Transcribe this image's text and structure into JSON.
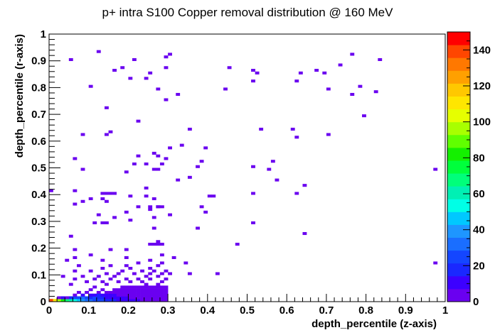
{
  "chart_data": {
    "type": "heatmap",
    "title": "p+ intra S100 Copper removal distribution @ 160 MeV",
    "xlabel": "depth_percentile (z-axis)",
    "ylabel": "depth_percentile (r-axis)",
    "xlim": [
      0,
      1
    ],
    "ylim": [
      0,
      1
    ],
    "zlim": [
      0,
      150
    ],
    "x_ticks": [
      "0",
      "0.1",
      "0.2",
      "0.3",
      "0.4",
      "0.5",
      "0.6",
      "0.7",
      "0.8",
      "0.9",
      "1"
    ],
    "y_ticks": [
      "0",
      "0.1",
      "0.2",
      "0.3",
      "0.4",
      "0.5",
      "0.6",
      "0.7",
      "0.8",
      "0.9",
      "1"
    ],
    "z_ticks": [
      "0",
      "20",
      "40",
      "60",
      "80",
      "100",
      "120",
      "140"
    ],
    "bin_width": 0.01,
    "bins": [
      [
        0.0,
        0.0,
        140
      ],
      [
        0.01,
        0.0,
        110
      ],
      [
        0.02,
        0.0,
        95
      ],
      [
        0.03,
        0.0,
        80
      ],
      [
        0.04,
        0.0,
        70
      ],
      [
        0.05,
        0.0,
        60
      ],
      [
        0.06,
        0.0,
        50
      ],
      [
        0.07,
        0.0,
        45
      ],
      [
        0.08,
        0.0,
        40
      ],
      [
        0.09,
        0.0,
        35
      ],
      [
        0.1,
        0.0,
        32
      ],
      [
        0.11,
        0.0,
        28
      ],
      [
        0.12,
        0.0,
        25
      ],
      [
        0.13,
        0.0,
        22
      ],
      [
        0.14,
        0.0,
        20
      ],
      [
        0.15,
        0.0,
        18
      ],
      [
        0.16,
        0.0,
        15
      ],
      [
        0.17,
        0.0,
        13
      ],
      [
        0.18,
        0.0,
        12
      ],
      [
        0.19,
        0.0,
        11
      ],
      [
        0.2,
        0.0,
        10
      ],
      [
        0.21,
        0.0,
        9
      ],
      [
        0.22,
        0.0,
        8
      ],
      [
        0.23,
        0.0,
        7
      ],
      [
        0.24,
        0.0,
        6
      ],
      [
        0.25,
        0.0,
        6
      ],
      [
        0.26,
        0.0,
        5
      ],
      [
        0.27,
        0.0,
        4
      ],
      [
        0.28,
        0.0,
        3
      ],
      [
        0.29,
        0.0,
        2
      ],
      [
        0.03,
        0.01,
        12
      ],
      [
        0.05,
        0.01,
        18
      ],
      [
        0.06,
        0.01,
        22
      ],
      [
        0.07,
        0.01,
        26
      ],
      [
        0.08,
        0.01,
        30
      ],
      [
        0.09,
        0.01,
        24
      ],
      [
        0.1,
        0.01,
        20
      ],
      [
        0.11,
        0.01,
        22
      ],
      [
        0.12,
        0.01,
        18
      ],
      [
        0.13,
        0.01,
        16
      ],
      [
        0.14,
        0.01,
        14
      ],
      [
        0.15,
        0.01,
        12
      ],
      [
        0.16,
        0.01,
        10
      ],
      [
        0.17,
        0.01,
        9
      ],
      [
        0.18,
        0.01,
        8
      ],
      [
        0.19,
        0.01,
        8
      ],
      [
        0.2,
        0.01,
        7
      ],
      [
        0.21,
        0.01,
        6
      ],
      [
        0.22,
        0.01,
        6
      ],
      [
        0.23,
        0.01,
        5
      ],
      [
        0.24,
        0.01,
        5
      ],
      [
        0.25,
        0.01,
        4
      ],
      [
        0.26,
        0.01,
        4
      ],
      [
        0.27,
        0.01,
        3
      ],
      [
        0.28,
        0.01,
        3
      ],
      [
        0.29,
        0.01,
        2
      ],
      [
        0.08,
        0.02,
        8
      ],
      [
        0.1,
        0.02,
        10
      ],
      [
        0.11,
        0.02,
        14
      ],
      [
        0.12,
        0.02,
        16
      ],
      [
        0.13,
        0.02,
        12
      ],
      [
        0.14,
        0.02,
        10
      ],
      [
        0.15,
        0.02,
        9
      ],
      [
        0.16,
        0.02,
        8
      ],
      [
        0.17,
        0.02,
        7
      ],
      [
        0.18,
        0.02,
        6
      ],
      [
        0.19,
        0.02,
        6
      ],
      [
        0.2,
        0.02,
        5
      ],
      [
        0.21,
        0.02,
        5
      ],
      [
        0.22,
        0.02,
        4
      ],
      [
        0.23,
        0.02,
        4
      ],
      [
        0.24,
        0.02,
        3
      ],
      [
        0.25,
        0.02,
        3
      ],
      [
        0.26,
        0.02,
        3
      ],
      [
        0.27,
        0.02,
        2
      ],
      [
        0.28,
        0.02,
        2
      ],
      [
        0.29,
        0.02,
        2
      ],
      [
        0.12,
        0.03,
        6
      ],
      [
        0.14,
        0.03,
        7
      ],
      [
        0.15,
        0.03,
        6
      ],
      [
        0.16,
        0.03,
        5
      ],
      [
        0.17,
        0.03,
        5
      ],
      [
        0.18,
        0.03,
        4
      ],
      [
        0.19,
        0.03,
        4
      ],
      [
        0.2,
        0.03,
        4
      ],
      [
        0.21,
        0.03,
        3
      ],
      [
        0.22,
        0.03,
        3
      ],
      [
        0.23,
        0.03,
        3
      ],
      [
        0.24,
        0.03,
        2
      ],
      [
        0.25,
        0.03,
        2
      ],
      [
        0.26,
        0.03,
        2
      ],
      [
        0.27,
        0.03,
        2
      ],
      [
        0.28,
        0.03,
        1
      ],
      [
        0.29,
        0.03,
        1
      ],
      [
        0.13,
        0.04,
        3
      ],
      [
        0.16,
        0.04,
        4
      ],
      [
        0.17,
        0.04,
        3
      ],
      [
        0.18,
        0.04,
        3
      ],
      [
        0.19,
        0.04,
        3
      ],
      [
        0.2,
        0.04,
        2
      ],
      [
        0.21,
        0.04,
        2
      ],
      [
        0.22,
        0.04,
        2
      ],
      [
        0.23,
        0.04,
        2
      ],
      [
        0.24,
        0.04,
        2
      ],
      [
        0.25,
        0.04,
        1
      ],
      [
        0.26,
        0.04,
        1
      ],
      [
        0.27,
        0.04,
        1
      ],
      [
        0.28,
        0.04,
        1
      ],
      [
        0.29,
        0.04,
        1
      ],
      [
        0.18,
        0.05,
        2
      ],
      [
        0.19,
        0.05,
        2
      ],
      [
        0.2,
        0.05,
        2
      ],
      [
        0.21,
        0.05,
        1
      ],
      [
        0.22,
        0.05,
        2
      ],
      [
        0.23,
        0.05,
        1
      ],
      [
        0.24,
        0.05,
        1
      ],
      [
        0.25,
        0.05,
        1
      ],
      [
        0.26,
        0.05,
        1
      ],
      [
        0.27,
        0.05,
        1
      ],
      [
        0.28,
        0.05,
        1
      ],
      [
        0.29,
        0.05,
        1
      ],
      [
        0.04,
        0.01,
        3
      ],
      [
        0.02,
        0.01,
        2
      ],
      [
        0.06,
        0.02,
        2
      ],
      [
        0.09,
        0.03,
        1
      ],
      [
        0.07,
        0.03,
        1
      ],
      [
        0.1,
        0.04,
        1
      ],
      [
        0.11,
        0.05,
        1
      ],
      [
        0.05,
        0.06,
        1
      ],
      [
        0.14,
        0.06,
        1
      ],
      [
        0.24,
        0.06,
        1
      ],
      [
        0.27,
        0.06,
        1
      ],
      [
        0.09,
        0.07,
        1
      ],
      [
        0.13,
        0.07,
        1
      ],
      [
        0.17,
        0.07,
        1
      ],
      [
        0.2,
        0.07,
        1
      ],
      [
        0.23,
        0.07,
        1
      ],
      [
        0.28,
        0.07,
        1
      ],
      [
        0.06,
        0.08,
        1
      ],
      [
        0.11,
        0.08,
        1
      ],
      [
        0.15,
        0.08,
        1
      ],
      [
        0.19,
        0.08,
        1
      ],
      [
        0.22,
        0.08,
        1
      ],
      [
        0.25,
        0.08,
        1
      ],
      [
        0.29,
        0.08,
        1
      ],
      [
        0.03,
        0.09,
        1
      ],
      [
        0.08,
        0.09,
        1
      ],
      [
        0.12,
        0.09,
        1
      ],
      [
        0.16,
        0.09,
        1
      ],
      [
        0.24,
        0.09,
        1
      ],
      [
        0.27,
        0.09,
        1
      ],
      [
        0.14,
        0.1,
        1
      ],
      [
        0.17,
        0.1,
        1
      ],
      [
        0.21,
        0.1,
        1
      ],
      [
        0.25,
        0.1,
        1
      ],
      [
        0.28,
        0.1,
        1
      ],
      [
        0.06,
        0.11,
        1
      ],
      [
        0.1,
        0.11,
        1
      ],
      [
        0.18,
        0.11,
        1
      ],
      [
        0.23,
        0.11,
        1
      ],
      [
        0.26,
        0.11,
        1
      ],
      [
        0.29,
        0.11,
        1
      ],
      [
        0.13,
        0.12,
        1
      ],
      [
        0.2,
        0.12,
        1
      ],
      [
        0.25,
        0.12,
        1
      ],
      [
        0.07,
        0.13,
        1
      ],
      [
        0.15,
        0.13,
        1
      ],
      [
        0.19,
        0.13,
        1
      ],
      [
        0.27,
        0.13,
        1
      ],
      [
        0.22,
        0.14,
        1
      ],
      [
        0.28,
        0.14,
        1
      ],
      [
        0.06,
        0.16,
        1
      ],
      [
        0.13,
        0.15,
        1
      ],
      [
        0.25,
        0.15,
        1
      ],
      [
        0.1,
        0.17,
        1
      ],
      [
        0.19,
        0.16,
        1
      ],
      [
        0.04,
        0.15,
        1
      ],
      [
        0.3,
        0.1,
        1
      ],
      [
        0.35,
        0.1,
        1
      ],
      [
        0.42,
        0.1,
        1
      ],
      [
        0.06,
        0.19,
        1
      ],
      [
        0.15,
        0.19,
        1
      ],
      [
        0.19,
        0.19,
        1
      ],
      [
        0.28,
        0.17,
        1
      ],
      [
        0.34,
        0.14,
        1
      ],
      [
        0.31,
        0.16,
        1
      ],
      [
        0.25,
        0.21,
        1
      ],
      [
        0.26,
        0.21,
        1
      ],
      [
        0.27,
        0.21,
        1
      ],
      [
        0.28,
        0.21,
        1
      ],
      [
        0.27,
        0.22,
        1
      ],
      [
        0.47,
        0.21,
        1
      ],
      [
        0.64,
        0.25,
        1
      ],
      [
        0.11,
        0.29,
        1
      ],
      [
        0.13,
        0.29,
        1
      ],
      [
        0.14,
        0.29,
        1
      ],
      [
        0.2,
        0.3,
        1
      ],
      [
        0.26,
        0.27,
        1
      ],
      [
        0.37,
        0.27,
        1
      ],
      [
        0.51,
        0.29,
        1
      ],
      [
        0.05,
        0.24,
        1
      ],
      [
        0.97,
        0.14,
        1
      ],
      [
        0.12,
        0.32,
        1
      ],
      [
        0.16,
        0.31,
        1
      ],
      [
        0.26,
        0.31,
        1
      ],
      [
        0.3,
        0.32,
        1
      ],
      [
        0.39,
        0.33,
        1
      ],
      [
        0.19,
        0.33,
        1
      ],
      [
        0.22,
        0.35,
        1
      ],
      [
        0.25,
        0.34,
        1
      ],
      [
        0.27,
        0.35,
        1
      ],
      [
        0.08,
        0.37,
        1
      ],
      [
        0.1,
        0.38,
        1
      ],
      [
        0.13,
        0.38,
        1
      ],
      [
        0.14,
        0.37,
        1
      ],
      [
        0.15,
        0.4,
        1
      ],
      [
        0.16,
        0.4,
        1
      ],
      [
        0.25,
        0.35,
        1
      ],
      [
        0.27,
        0.35,
        1
      ],
      [
        0.28,
        0.35,
        1
      ],
      [
        0.06,
        0.36,
        1
      ],
      [
        0.26,
        0.38,
        1
      ],
      [
        0.38,
        0.35,
        1
      ],
      [
        0.2,
        0.39,
        1
      ],
      [
        0.24,
        0.39,
        1
      ],
      [
        0.4,
        0.39,
        1
      ],
      [
        0.41,
        0.39,
        1
      ],
      [
        0.51,
        0.4,
        1
      ],
      [
        0.62,
        0.4,
        1
      ],
      [
        0.0,
        0.41,
        1
      ],
      [
        0.06,
        0.41,
        1
      ],
      [
        0.13,
        0.4,
        1
      ],
      [
        0.14,
        0.4,
        1
      ],
      [
        0.24,
        0.42,
        1
      ],
      [
        0.64,
        0.43,
        1
      ],
      [
        0.08,
        0.49,
        1
      ],
      [
        0.19,
        0.48,
        1
      ],
      [
        0.21,
        0.51,
        1
      ],
      [
        0.26,
        0.49,
        1
      ],
      [
        0.27,
        0.49,
        1
      ],
      [
        0.32,
        0.45,
        1
      ],
      [
        0.35,
        0.46,
        1
      ],
      [
        0.51,
        0.5,
        1
      ],
      [
        0.57,
        0.45,
        1
      ],
      [
        0.06,
        0.53,
        1
      ],
      [
        0.24,
        0.51,
        1
      ],
      [
        0.27,
        0.54,
        1
      ],
      [
        0.28,
        0.51,
        1
      ],
      [
        0.37,
        0.5,
        1
      ],
      [
        0.55,
        0.49,
        1
      ],
      [
        0.56,
        0.52,
        1
      ],
      [
        0.97,
        0.49,
        1
      ],
      [
        0.26,
        0.55,
        1
      ],
      [
        0.29,
        0.53,
        1
      ],
      [
        0.38,
        0.52,
        1
      ],
      [
        0.08,
        0.62,
        1
      ],
      [
        0.14,
        0.62,
        1
      ],
      [
        0.15,
        0.63,
        1
      ],
      [
        0.22,
        0.54,
        1
      ],
      [
        0.3,
        0.57,
        1
      ],
      [
        0.33,
        0.58,
        1
      ],
      [
        0.39,
        0.57,
        1
      ],
      [
        0.62,
        0.61,
        1
      ],
      [
        0.7,
        0.62,
        1
      ],
      [
        0.14,
        0.72,
        1
      ],
      [
        0.22,
        0.67,
        1
      ],
      [
        0.29,
        0.75,
        1
      ],
      [
        0.35,
        0.64,
        1
      ],
      [
        0.53,
        0.64,
        1
      ],
      [
        0.61,
        0.64,
        1
      ],
      [
        0.79,
        0.69,
        1
      ],
      [
        0.1,
        0.8,
        1
      ],
      [
        0.16,
        0.86,
        1
      ],
      [
        0.2,
        0.83,
        1
      ],
      [
        0.24,
        0.83,
        1
      ],
      [
        0.27,
        0.79,
        1
      ],
      [
        0.32,
        0.77,
        1
      ],
      [
        0.44,
        0.79,
        1
      ],
      [
        0.51,
        0.82,
        1
      ],
      [
        0.62,
        0.82,
        1
      ],
      [
        0.7,
        0.79,
        1
      ],
      [
        0.76,
        0.77,
        1
      ],
      [
        0.78,
        0.8,
        1
      ],
      [
        0.82,
        0.78,
        1
      ],
      [
        0.18,
        0.87,
        1
      ],
      [
        0.21,
        0.9,
        1
      ],
      [
        0.25,
        0.85,
        1
      ],
      [
        0.29,
        0.87,
        1
      ],
      [
        0.45,
        0.87,
        1
      ],
      [
        0.51,
        0.86,
        1
      ],
      [
        0.63,
        0.85,
        1
      ],
      [
        0.69,
        0.85,
        1
      ],
      [
        0.73,
        0.88,
        1
      ],
      [
        0.05,
        0.9,
        1
      ],
      [
        0.12,
        0.93,
        1
      ],
      [
        0.29,
        0.91,
        1
      ],
      [
        0.3,
        0.92,
        1
      ],
      [
        0.52,
        0.85,
        1
      ],
      [
        0.67,
        0.86,
        1
      ],
      [
        0.76,
        0.92,
        1
      ],
      [
        0.83,
        0.9,
        1
      ]
    ]
  }
}
